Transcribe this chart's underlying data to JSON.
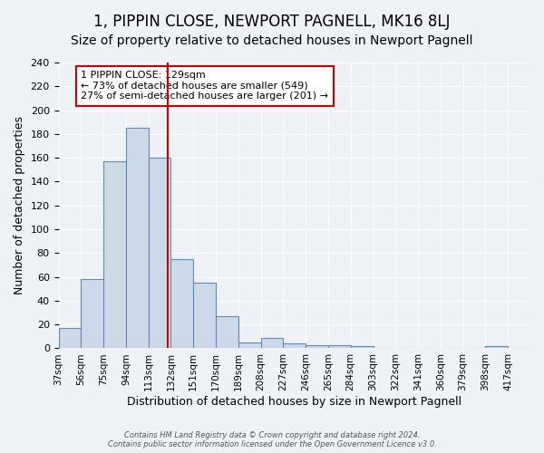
{
  "title": "1, PIPPIN CLOSE, NEWPORT PAGNELL, MK16 8LJ",
  "subtitle": "Size of property relative to detached houses in Newport Pagnell",
  "xlabel": "Distribution of detached houses by size in Newport Pagnell",
  "ylabel": "Number of detached properties",
  "bin_labels": [
    "37sqm",
    "56sqm",
    "75sqm",
    "94sqm",
    "113sqm",
    "132sqm",
    "151sqm",
    "170sqm",
    "189sqm",
    "208sqm",
    "227sqm",
    "246sqm",
    "265sqm",
    "284sqm",
    "303sqm",
    "322sqm",
    "341sqm",
    "360sqm",
    "379sqm",
    "398sqm",
    "417sqm"
  ],
  "bin_edges": [
    37,
    56,
    75,
    94,
    113,
    132,
    151,
    170,
    189,
    208,
    227,
    246,
    265,
    284,
    303,
    322,
    341,
    360,
    379,
    398,
    417,
    436
  ],
  "bar_heights": [
    17,
    58,
    157,
    185,
    160,
    75,
    55,
    27,
    5,
    9,
    4,
    3,
    3,
    2,
    0,
    0,
    0,
    0,
    0,
    2,
    0
  ],
  "bar_color": "#ccd9e8",
  "bar_edge_color": "#5b8db8",
  "vline_x": 129,
  "vline_color": "#cc0000",
  "ylim": [
    0,
    240
  ],
  "yticks": [
    0,
    20,
    40,
    60,
    80,
    100,
    120,
    140,
    160,
    180,
    200,
    220,
    240
  ],
  "annotation_title": "1 PIPPIN CLOSE: 129sqm",
  "annotation_line1": "← 73% of detached houses are smaller (549)",
  "annotation_line2": "27% of semi-detached houses are larger (201) →",
  "annotation_box_color": "#ffffff",
  "annotation_border_color": "#cc0000",
  "footer_line1": "Contains HM Land Registry data © Crown copyright and database right 2024.",
  "footer_line2": "Contains public sector information licensed under the Open Government Licence v3.0.",
  "background_color": "#eef2f7",
  "grid_color": "#ffffff",
  "title_fontsize": 12,
  "subtitle_fontsize": 10
}
